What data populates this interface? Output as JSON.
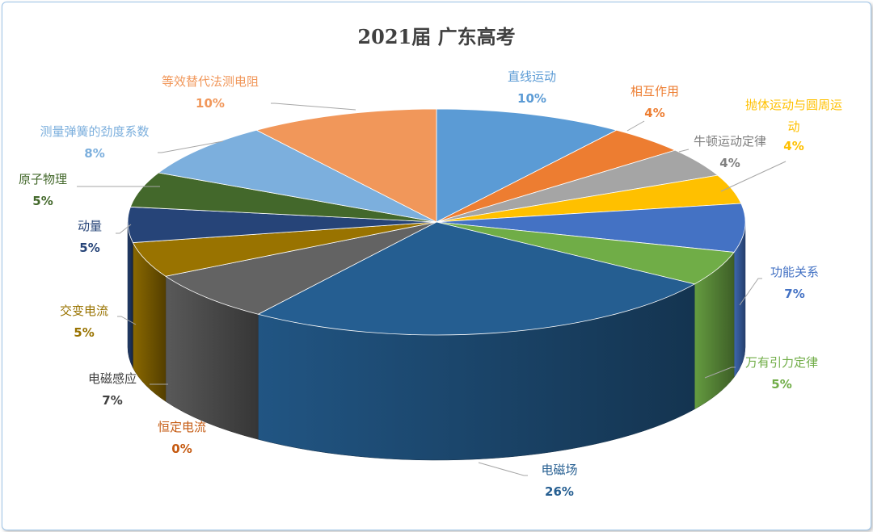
{
  "chart_data": {
    "type": "pie",
    "style": "3d",
    "title": "2021届 广东高考",
    "legend": "none",
    "slices": [
      {
        "label": "直线运动",
        "value": 10,
        "display": "10%",
        "color": "#5b9bd5",
        "label_color": "#5b9bd5"
      },
      {
        "label": "相互作用",
        "value": 4.2,
        "display": "4%",
        "color": "#ed7d31",
        "label_color": "#ed7d31"
      },
      {
        "label": "牛顿运动定律",
        "value": 4.2,
        "display": "4%",
        "color": "#a5a5a5",
        "label_color": "#808080"
      },
      {
        "label": "抛体运动与圆周运动",
        "value": 4.2,
        "display": "4%",
        "color": "#ffc000",
        "label_color": "#ffc000"
      },
      {
        "label": "功能关系",
        "value": 7,
        "display": "7%",
        "color": "#4472c4",
        "label_color": "#4472c4"
      },
      {
        "label": "万有引力定律",
        "value": 5,
        "display": "5%",
        "color": "#70ad47",
        "label_color": "#70ad47"
      },
      {
        "label": "电磁场",
        "value": 25.8,
        "display": "26%",
        "color": "#255e91",
        "label_color": "#255e91"
      },
      {
        "label": "恒定电流",
        "value": 0,
        "display": "0%",
        "color": "#c55a11",
        "label_color": "#c55a11"
      },
      {
        "label": "电磁感应",
        "value": 7.3,
        "display": "7%",
        "color": "#636363",
        "label_color": "#404040"
      },
      {
        "label": "交变电流",
        "value": 5.1,
        "display": "5%",
        "color": "#997300",
        "label_color": "#997300"
      },
      {
        "label": "动量",
        "value": 5.1,
        "display": "5%",
        "color": "#264478",
        "label_color": "#264478"
      },
      {
        "label": "原子物理",
        "value": 5.1,
        "display": "5%",
        "color": "#43682b",
        "label_color": "#43682b"
      },
      {
        "label": "测量弹簧的劲度系数",
        "value": 8,
        "display": "8%",
        "color": "#7cafdd",
        "label_color": "#7cafdd"
      },
      {
        "label": "等效替代法测电阻",
        "value": 10,
        "display": "10%",
        "color": "#f1975a",
        "label_color": "#f1975a"
      }
    ]
  }
}
